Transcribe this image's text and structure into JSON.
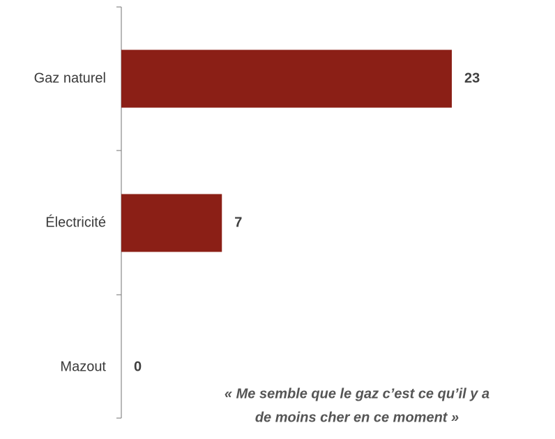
{
  "chart_data": {
    "type": "bar",
    "orientation": "horizontal",
    "categories": [
      "Gaz naturel",
      "Électricité",
      "Mazout"
    ],
    "values": [
      23,
      7,
      0
    ],
    "color": "#8b1f16",
    "annotation": [
      "« Me semble que le gaz c’est ce qu’il y a",
      "de moins cher en ce moment »"
    ]
  }
}
